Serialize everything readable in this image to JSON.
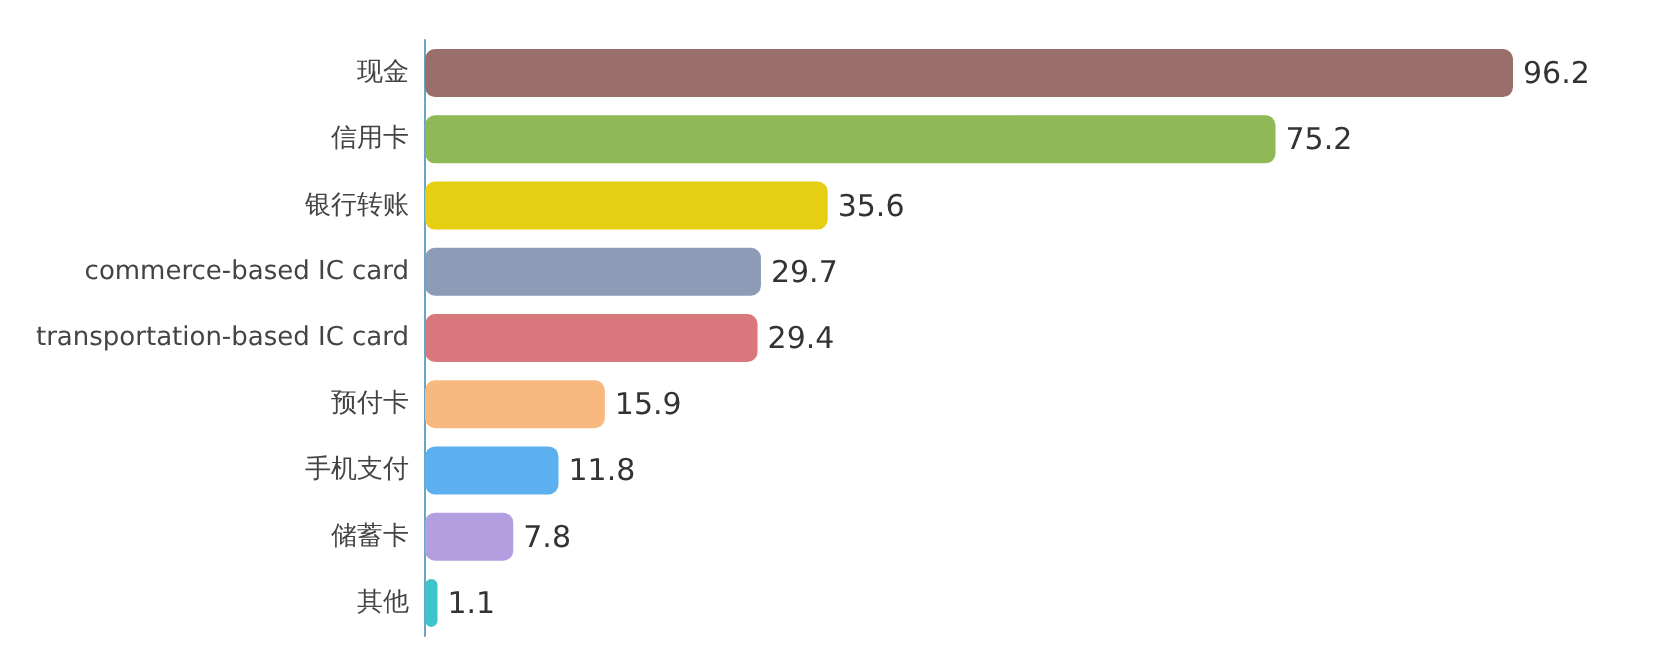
{
  "chart_data": {
    "type": "bar",
    "orientation": "horizontal",
    "categories": [
      "现金",
      "信用卡",
      "银行转账",
      "commerce-based IC card",
      "transportation-based IC card",
      "预付卡",
      "手机支付",
      "储蓄卡",
      "其他"
    ],
    "values": [
      96.2,
      75.2,
      35.6,
      29.7,
      29.4,
      15.9,
      11.8,
      7.8,
      1.1
    ],
    "colors": [
      "#9a6f6b",
      "#8fb856",
      "#e6cf12",
      "#8c9bb6",
      "#d8787c",
      "#f8b97f",
      "#5cb0f0",
      "#b39fe0",
      "#3ec5c9"
    ],
    "data_labels": true
  }
}
